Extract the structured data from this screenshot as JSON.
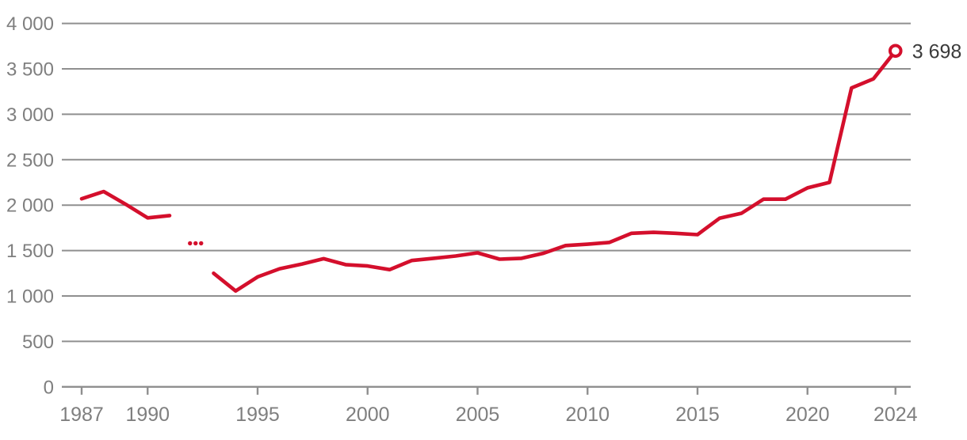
{
  "chart_data": {
    "type": "line",
    "title": "",
    "legend": "none",
    "grid": "horizontal-only",
    "xlim": [
      1987,
      2024
    ],
    "ylim": [
      0,
      4000
    ],
    "y_tick_values": [
      0,
      500,
      1000,
      1500,
      2000,
      2500,
      3000,
      3500,
      4000
    ],
    "y_tick_labels": [
      "0",
      "500",
      "1 000",
      "1 500",
      "2 000",
      "2 500",
      "3 000",
      "3 500",
      "4 000"
    ],
    "x_tick_years": [
      1987,
      1990,
      1995,
      2000,
      2005,
      2010,
      2015,
      2020,
      2024
    ],
    "x_tick_labels": [
      "1987",
      "1990",
      "1995",
      "2000",
      "2005",
      "2010",
      "2015",
      "2020",
      "2024"
    ],
    "series": [
      {
        "name": "segment-1987-1991",
        "x": [
          1987,
          1988,
          1989,
          1990,
          1991
        ],
        "values": [
          2070,
          2150,
          2010,
          1860,
          1885
        ]
      },
      {
        "name": "segment-1993-2024",
        "x": [
          1993,
          1994,
          1995,
          1996,
          1997,
          1998,
          1999,
          2000,
          2001,
          2002,
          2003,
          2004,
          2005,
          2006,
          2007,
          2008,
          2009,
          2010,
          2011,
          2012,
          2013,
          2014,
          2015,
          2016,
          2017,
          2018,
          2019,
          2020,
          2021,
          2022,
          2023,
          2024
        ],
        "values": [
          1250,
          1055,
          1210,
          1300,
          1350,
          1410,
          1345,
          1330,
          1290,
          1390,
          1415,
          1440,
          1475,
          1405,
          1415,
          1470,
          1555,
          1570,
          1590,
          1690,
          1700,
          1690,
          1675,
          1855,
          1910,
          2065,
          2065,
          2190,
          2250,
          3290,
          3390,
          3698
        ]
      }
    ],
    "missing_data_marker": {
      "x": 1992,
      "y": 1580,
      "glyph": "three-dots"
    },
    "end_point": {
      "x": 2024,
      "value": 3698,
      "label": "3 698",
      "marker": "open-circle"
    },
    "colors": {
      "line": "#d40f2c",
      "grid": "#8f8f8f",
      "axis": "#8f8f8f",
      "tick_label": "#7f7f7f",
      "end_label": "#3a3a3a",
      "background": "#ffffff"
    }
  }
}
